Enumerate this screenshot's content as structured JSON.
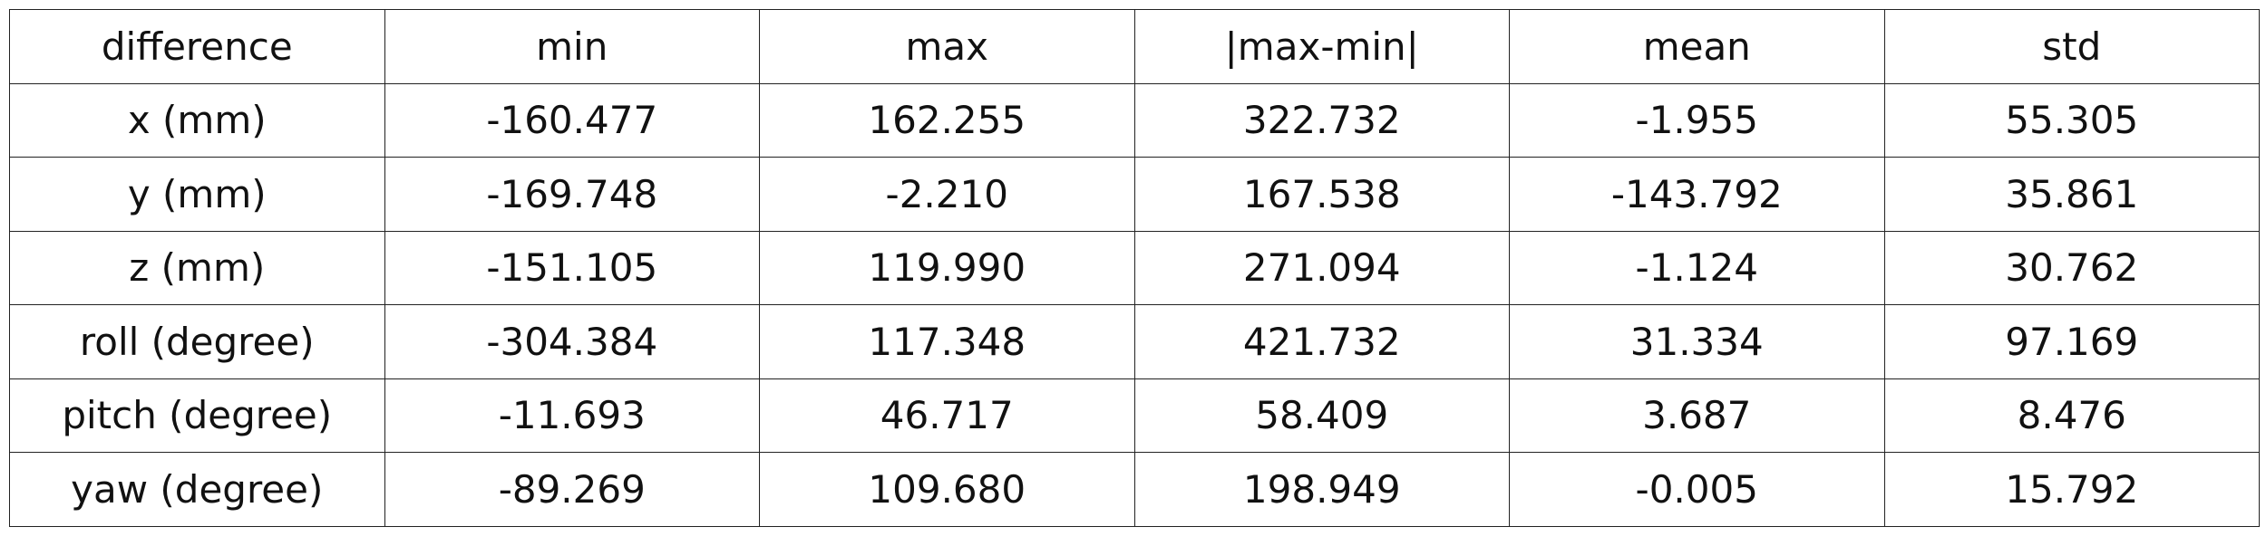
{
  "table": {
    "headers": [
      "difference",
      "min",
      "max",
      "|max-min|",
      "mean",
      "std"
    ],
    "rows": [
      [
        "x (mm)",
        "-160.477",
        "162.255",
        "322.732",
        "-1.955",
        "55.305"
      ],
      [
        "y (mm)",
        "-169.748",
        "-2.210",
        "167.538",
        "-143.792",
        "35.861"
      ],
      [
        "z (mm)",
        "-151.105",
        "119.990",
        "271.094",
        "-1.124",
        "30.762"
      ],
      [
        "roll (degree)",
        "-304.384",
        "117.348",
        "421.732",
        "31.334",
        "97.169"
      ],
      [
        "pitch (degree)",
        "-11.693",
        "46.717",
        "58.409",
        "3.687",
        "8.476"
      ],
      [
        "yaw (degree)",
        "-89.269",
        "109.680",
        "198.949",
        "-0.005",
        "15.792"
      ]
    ]
  }
}
